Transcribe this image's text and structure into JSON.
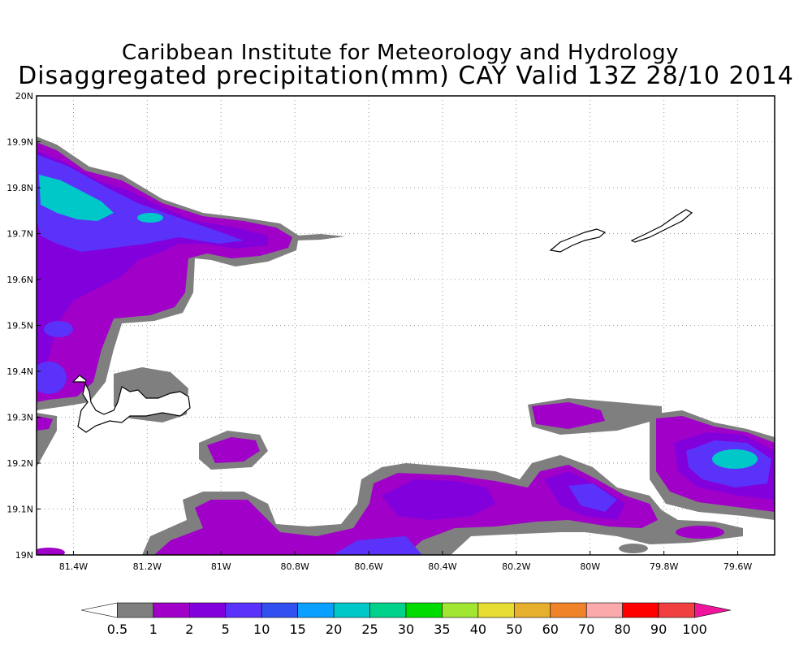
{
  "header": {
    "institute": "Caribbean Institute for Meteorology and Hydrology",
    "product": "Disaggregated precipitation(mm) CAY Valid 13Z 28/10 2014"
  },
  "map": {
    "lon_range": [
      -81.5,
      -79.5
    ],
    "lat_range": [
      19.0,
      20.0
    ],
    "lat_ticks": [
      {
        "value": 19.0,
        "label": "19N"
      },
      {
        "value": 19.1,
        "label": "19.1N"
      },
      {
        "value": 19.2,
        "label": "19.2N"
      },
      {
        "value": 19.3,
        "label": "19.3N"
      },
      {
        "value": 19.4,
        "label": "19.4N"
      },
      {
        "value": 19.5,
        "label": "19.5N"
      },
      {
        "value": 19.6,
        "label": "19.6N"
      },
      {
        "value": 19.7,
        "label": "19.7N"
      },
      {
        "value": 19.8,
        "label": "19.8N"
      },
      {
        "value": 19.9,
        "label": "19.9N"
      },
      {
        "value": 20.0,
        "label": "20N"
      }
    ],
    "lon_ticks": [
      {
        "value": -81.4,
        "label": "81.4W"
      },
      {
        "value": -81.2,
        "label": "81.2W"
      },
      {
        "value": -81.0,
        "label": "81W"
      },
      {
        "value": -80.8,
        "label": "80.8W"
      },
      {
        "value": -80.6,
        "label": "80.6W"
      },
      {
        "value": -80.4,
        "label": "80.4W"
      },
      {
        "value": -80.2,
        "label": "80.2W"
      },
      {
        "value": -80.0,
        "label": "80W"
      },
      {
        "value": -79.8,
        "label": "79.8W"
      },
      {
        "value": -79.6,
        "label": "79.6W"
      }
    ],
    "grid": true
  },
  "colorbar": {
    "labels": [
      "0.5",
      "1",
      "2",
      "5",
      "10",
      "15",
      "20",
      "25",
      "30",
      "35",
      "40",
      "50",
      "60",
      "70",
      "80",
      "90",
      "100"
    ],
    "colors": [
      "#ffffff",
      "#7f7f7f",
      "#a000c8",
      "#8200dc",
      "#5a32fa",
      "#3250f0",
      "#0aa0ff",
      "#00c8c8",
      "#00d28c",
      "#00dc00",
      "#a0e632",
      "#e6dc32",
      "#e6af2d",
      "#f08228",
      "#faaaaa",
      "#ff0000",
      "#f04040",
      "#f0169c"
    ]
  }
}
